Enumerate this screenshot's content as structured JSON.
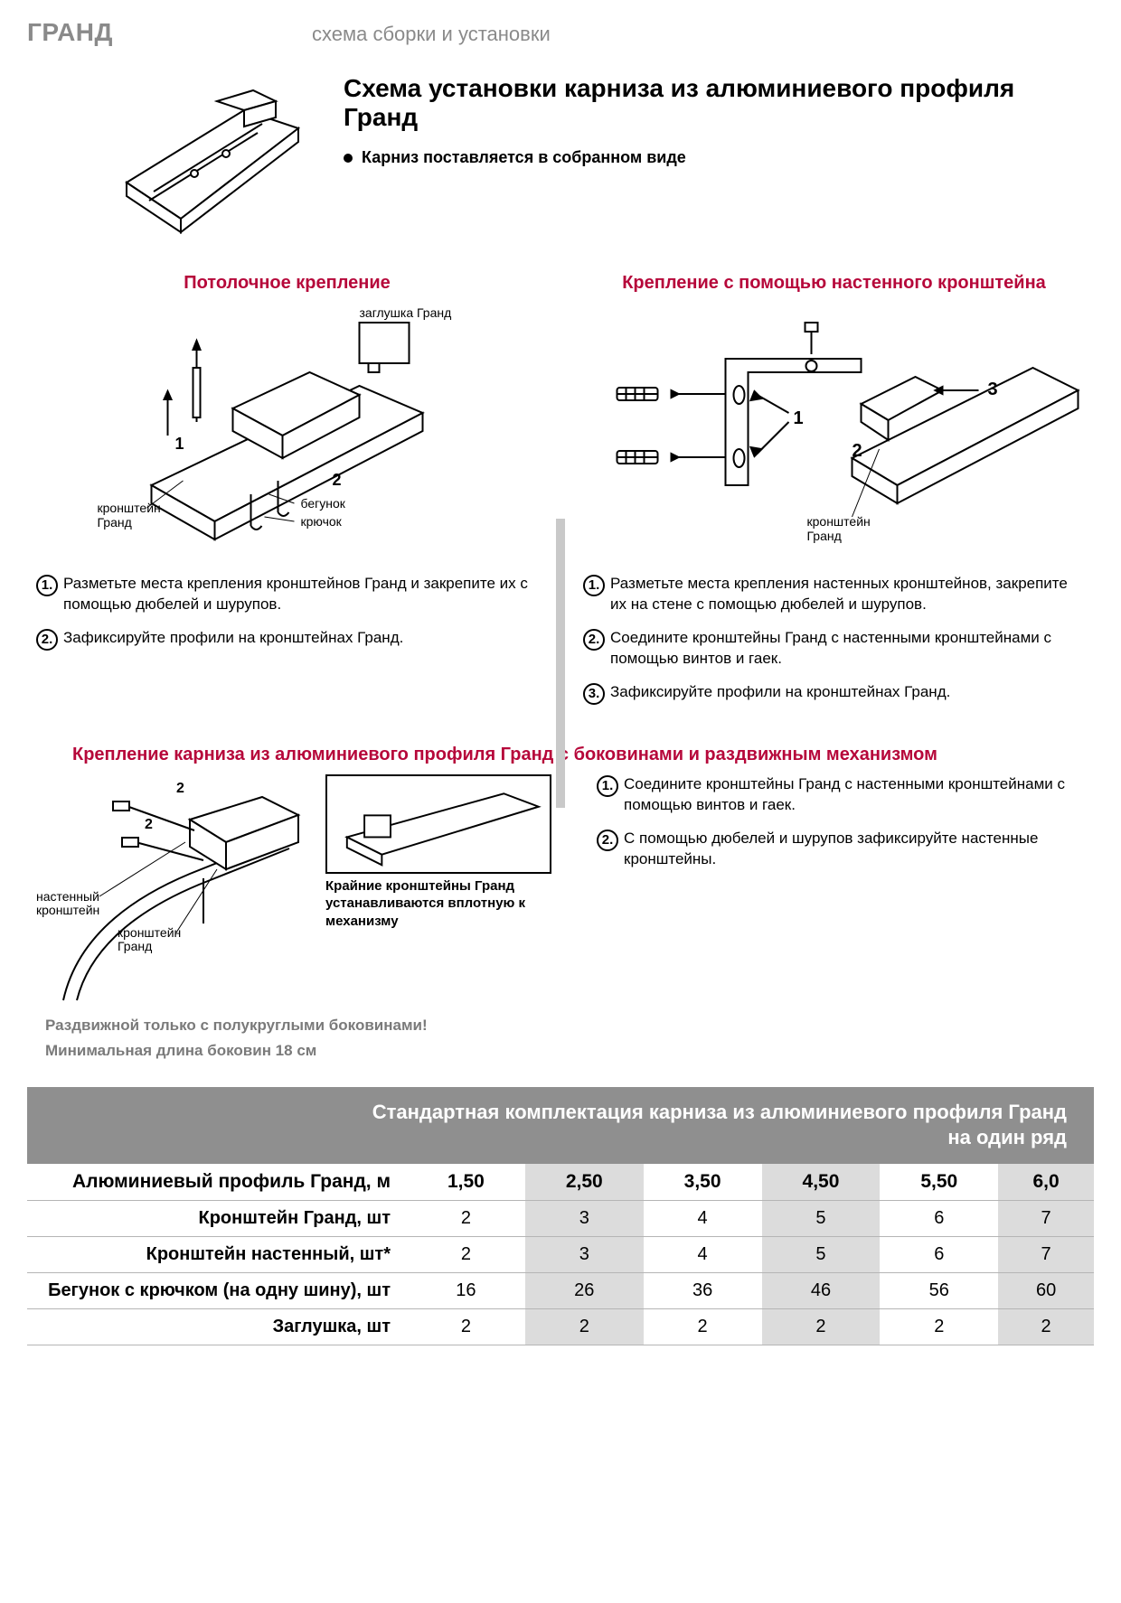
{
  "header": {
    "brand": "ГРАНД",
    "subtitle": "схема сборки и установки"
  },
  "intro": {
    "title": "Схема  установки карниза из алюминиевого профиля Гранд",
    "bullet": "Карниз поставляется в собранном виде"
  },
  "ceiling": {
    "title": "Потолочное крепление",
    "labels": {
      "cap": "заглушка Гранд",
      "bracket": "кронштейн Гранд",
      "runner": "бегунок",
      "hook": "крючок",
      "n1": "1",
      "n2": "2"
    },
    "steps": [
      "Разметьте места  крепления кронштейнов  Гранд и закрепите их  с помощью дюбелей и шурупов.",
      "Зафиксируйте профили на кронштейнах  Гранд."
    ]
  },
  "wall": {
    "title": "Крепление с помощью настенного кронштейна",
    "labels": {
      "bracket": "кронштейн Гранд",
      "n1": "1",
      "n2": "2",
      "n3": "3"
    },
    "steps": [
      "Разметьте места крепления  настенных кронштейнов, закрепите их  на стене с помощью  дюбелей и  шурупов.",
      "Соедините кронштейны  Гранд  с настенными кронштейнами с помощью  винтов и гаек.",
      "Зафиксируйте профили  на кронштейнах  Гранд."
    ]
  },
  "section3": {
    "title": "Крепление карниза из алюминиевого профиля Гранд с боковинами и раздвижным механизмом",
    "labels": {
      "wall_bracket": "настенный кронштейн",
      "grand_bracket": "кронштейн Гранд",
      "n2": "2"
    },
    "mid_caption": "Крайние кронштейны Гранд устанавливаются вплотную к механизму",
    "steps": [
      "Соедините кронштейны Гранд с настенными кронштейнами с помощью винтов и гаек.",
      "С помощью дюбелей и шурупов зафиксируйте настенные кронштейны."
    ],
    "notes": [
      "Раздвижной только с полукруглыми боковинами!",
      "Минимальная длина боковин 18 см"
    ]
  },
  "table": {
    "title_line1": "Стандартная комплектация карниза из алюминиевого профиля Гранд",
    "title_line2": "на один ряд",
    "columns": [
      "1,50",
      "2,50",
      "3,50",
      "4,50",
      "5,50",
      "6,0"
    ],
    "shaded_cols": [
      1,
      3,
      5
    ],
    "rows": [
      {
        "label": "Алюминиевый профиль Гранд, м",
        "header": true
      },
      {
        "label": "Кронштейн Гранд, шт",
        "values": [
          "2",
          "3",
          "4",
          "5",
          "6",
          "7"
        ]
      },
      {
        "label": "Кронштейн настенный, шт*",
        "values": [
          "2",
          "3",
          "4",
          "5",
          "6",
          "7"
        ]
      },
      {
        "label": "Бегунок с крючком (на одну шину), шт",
        "values": [
          "16",
          "26",
          "36",
          "46",
          "56",
          "60"
        ]
      },
      {
        "label": "Заглушка, шт",
        "values": [
          "2",
          "2",
          "2",
          "2",
          "2",
          "2"
        ]
      }
    ]
  },
  "colors": {
    "accent": "#b6073a",
    "grey": "#8a8a8a",
    "table_header_bg": "#8f8f8f",
    "shade": "#dcdcdc"
  }
}
